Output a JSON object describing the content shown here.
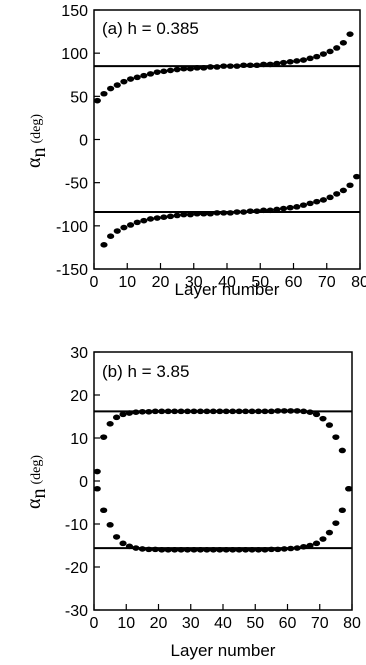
{
  "chart_data": [
    {
      "type": "scatter",
      "panel_label": "(a) h = 0.385",
      "xlabel": "Layer number",
      "ylabel": "α",
      "ylabel_sub": "n",
      "ylabel_unit": "(deg)",
      "xlim": [
        0,
        80
      ],
      "ylim": [
        -150,
        150
      ],
      "xticks": [
        0,
        10,
        20,
        30,
        40,
        50,
        60,
        70,
        80
      ],
      "yticks": [
        150,
        100,
        50,
        0,
        -50,
        -100,
        -150
      ],
      "hlines": [
        85,
        -84
      ],
      "series": [
        {
          "x": [
            1,
            3,
            5,
            7,
            9,
            11,
            13,
            15,
            17,
            19,
            21,
            23,
            25,
            27,
            29,
            31,
            33,
            35,
            37,
            39,
            41,
            43,
            45,
            47,
            49,
            51,
            53,
            55,
            57,
            59,
            61,
            63,
            65,
            67,
            69,
            71,
            73,
            75,
            77
          ],
          "y": [
            45,
            53,
            59,
            63,
            67,
            70,
            72,
            74,
            76,
            78,
            79,
            80,
            81,
            82,
            82,
            83,
            83,
            84,
            84,
            85,
            85,
            85,
            86,
            86,
            86,
            87,
            87,
            88,
            89,
            90,
            91,
            92,
            94,
            96,
            99,
            102,
            106,
            112,
            122
          ]
        },
        {
          "x": [
            3,
            5,
            7,
            9,
            11,
            13,
            15,
            17,
            19,
            21,
            23,
            25,
            27,
            29,
            31,
            33,
            35,
            37,
            39,
            41,
            43,
            45,
            47,
            49,
            51,
            53,
            55,
            57,
            59,
            61,
            63,
            65,
            67,
            69,
            71,
            73,
            75,
            77,
            79
          ],
          "y": [
            -122,
            -112,
            -106,
            -102,
            -99,
            -96,
            -94,
            -92,
            -91,
            -90,
            -89,
            -88,
            -87,
            -87,
            -86,
            -86,
            -86,
            -85,
            -85,
            -85,
            -84,
            -84,
            -83,
            -83,
            -82,
            -82,
            -81,
            -80,
            -79,
            -78,
            -76,
            -74,
            -72,
            -70,
            -67,
            -63,
            -59,
            -53,
            -43
          ]
        }
      ]
    },
    {
      "type": "scatter",
      "panel_label": "(b)  h =  3.85",
      "xlabel": "Layer number",
      "ylabel": "α",
      "ylabel_sub": "n",
      "ylabel_unit": "(deg)",
      "xlim": [
        0,
        80
      ],
      "ylim": [
        -30,
        30
      ],
      "xticks": [
        0,
        10,
        20,
        30,
        40,
        50,
        60,
        70,
        80
      ],
      "xtick_labels": [
        "0",
        "10",
        "20",
        "30",
        "40",
        "50",
        "60",
        "70",
        "80"
      ],
      "yticks": [
        30,
        20,
        10,
        0,
        -10,
        -20,
        -30
      ],
      "hlines": [
        16.2,
        -15.6
      ],
      "series": [
        {
          "x": [
            1,
            3,
            5,
            7,
            9,
            11,
            13,
            15,
            17,
            19,
            21,
            23,
            25,
            27,
            29,
            31,
            33,
            35,
            37,
            39,
            41,
            43,
            45,
            47,
            49,
            51,
            53,
            55,
            57,
            59,
            61,
            63,
            65,
            67,
            69,
            71,
            73,
            75,
            77,
            79
          ],
          "y": [
            2.2,
            10.2,
            13.3,
            14.8,
            15.5,
            15.8,
            16.0,
            16.1,
            16.1,
            16.2,
            16.2,
            16.2,
            16.2,
            16.2,
            16.2,
            16.2,
            16.2,
            16.2,
            16.2,
            16.2,
            16.2,
            16.2,
            16.2,
            16.2,
            16.2,
            16.2,
            16.2,
            16.2,
            16.3,
            16.3,
            16.3,
            16.3,
            16.2,
            16.0,
            15.5,
            14.5,
            13.0,
            10.2,
            7.1,
            -1.8
          ]
        },
        {
          "x": [
            1,
            3,
            5,
            7,
            9,
            11,
            13,
            15,
            17,
            19,
            21,
            23,
            25,
            27,
            29,
            31,
            33,
            35,
            37,
            39,
            41,
            43,
            45,
            47,
            49,
            51,
            53,
            55,
            57,
            59,
            61,
            63,
            65,
            67,
            69,
            71,
            73,
            75,
            77,
            79
          ],
          "y": [
            -1.8,
            -6.8,
            -10.2,
            -13.0,
            -14.5,
            -15.2,
            -15.6,
            -15.8,
            -15.9,
            -15.9,
            -16.0,
            -16.0,
            -16.0,
            -16.0,
            -16.0,
            -16.0,
            -16.0,
            -16.0,
            -16.0,
            -16.0,
            -16.0,
            -16.0,
            -16.0,
            -16.0,
            -16.0,
            -16.0,
            -16.0,
            -15.9,
            -15.9,
            -15.8,
            -15.7,
            -15.6,
            -15.3,
            -15.0,
            -14.5,
            -13.5,
            -12.0,
            -9.8,
            -6.8,
            -1.8
          ]
        }
      ]
    }
  ]
}
